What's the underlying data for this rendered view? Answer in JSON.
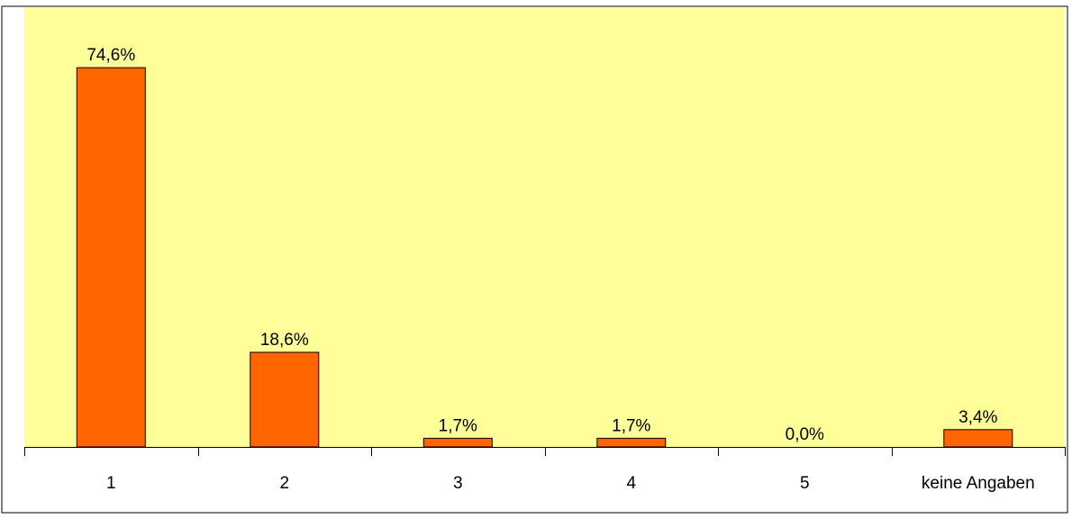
{
  "colors": {
    "plot_background": "#ffff99",
    "bar_fill": "#ff6600",
    "bar_stroke": "#000000",
    "frame": "#000000",
    "text": "#000000"
  },
  "chart_data": {
    "type": "bar",
    "categories": [
      "1",
      "2",
      "3",
      "4",
      "5",
      "keine Angaben"
    ],
    "values": [
      74.6,
      18.6,
      1.7,
      1.7,
      0.0,
      3.4
    ],
    "data_labels": [
      "74,6%",
      "18,6%",
      "1,7%",
      "1,7%",
      "0,0%",
      "3,4%"
    ],
    "unit": "%",
    "ylim": [
      0,
      80
    ],
    "grid": false,
    "legend": "none"
  }
}
